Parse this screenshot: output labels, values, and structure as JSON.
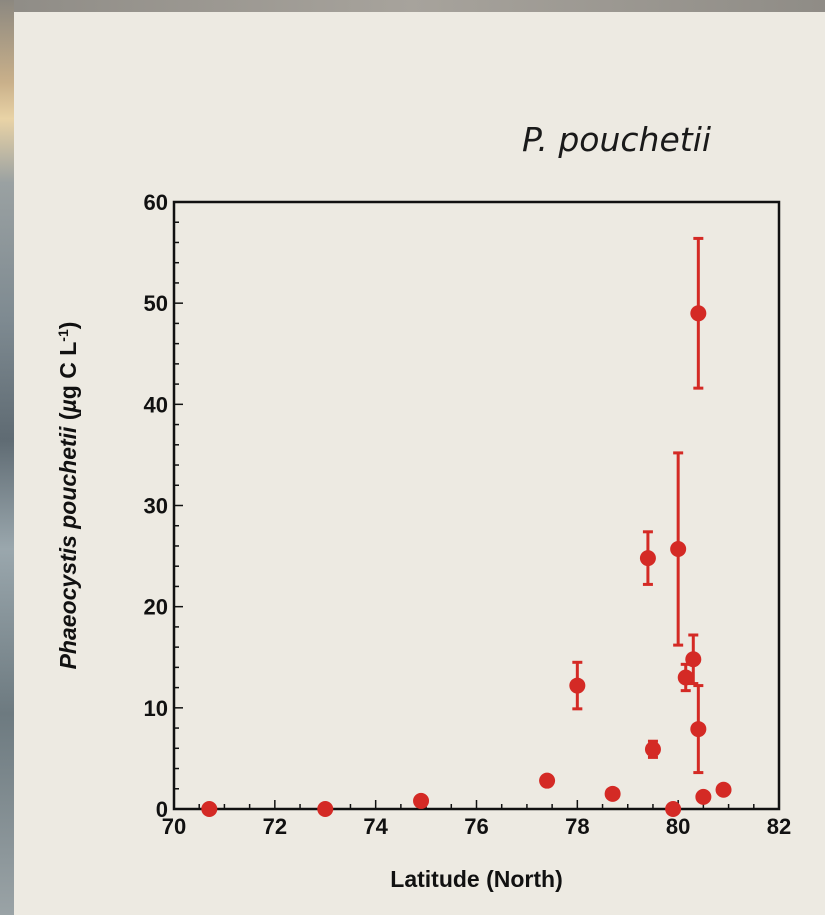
{
  "slide": {
    "species_title": "P. pouchetii"
  },
  "chart_data": {
    "type": "scatter",
    "title": "",
    "xlabel": "Latitude (North)",
    "ylabel_parts": {
      "italic": "Phaeocystis pouchetii",
      "unit_prefix": " (",
      "mu": "µ",
      "unit_main": "g C L",
      "superscript": "-1",
      "unit_suffix": ")"
    },
    "xlim": [
      70,
      82
    ],
    "ylim": [
      0,
      60
    ],
    "x_ticks": [
      70,
      72,
      74,
      76,
      78,
      80,
      82
    ],
    "y_ticks": [
      0,
      10,
      20,
      30,
      40,
      50,
      60
    ],
    "grid": false,
    "legend": "none",
    "marker_color": "#d42a25",
    "points": [
      {
        "x": 70.7,
        "y": 0
      },
      {
        "x": 73.0,
        "y": 0
      },
      {
        "x": 74.9,
        "y": 0.8
      },
      {
        "x": 77.4,
        "y": 2.8
      },
      {
        "x": 78.0,
        "y": 12.2,
        "err": 2.3
      },
      {
        "x": 78.7,
        "y": 1.5
      },
      {
        "x": 79.4,
        "y": 24.8,
        "err": 2.6
      },
      {
        "x": 79.5,
        "y": 5.9,
        "err": 0.8
      },
      {
        "x": 79.9,
        "y": 0
      },
      {
        "x": 80.0,
        "y": 25.7,
        "err": 9.5
      },
      {
        "x": 80.15,
        "y": 13.0,
        "err": 1.3
      },
      {
        "x": 80.3,
        "y": 14.8,
        "err": 2.4
      },
      {
        "x": 80.4,
        "y": 7.9,
        "err": 4.3
      },
      {
        "x": 80.4,
        "y": 49.0,
        "err": 7.4
      },
      {
        "x": 80.5,
        "y": 1.2
      },
      {
        "x": 80.9,
        "y": 1.9
      }
    ]
  }
}
